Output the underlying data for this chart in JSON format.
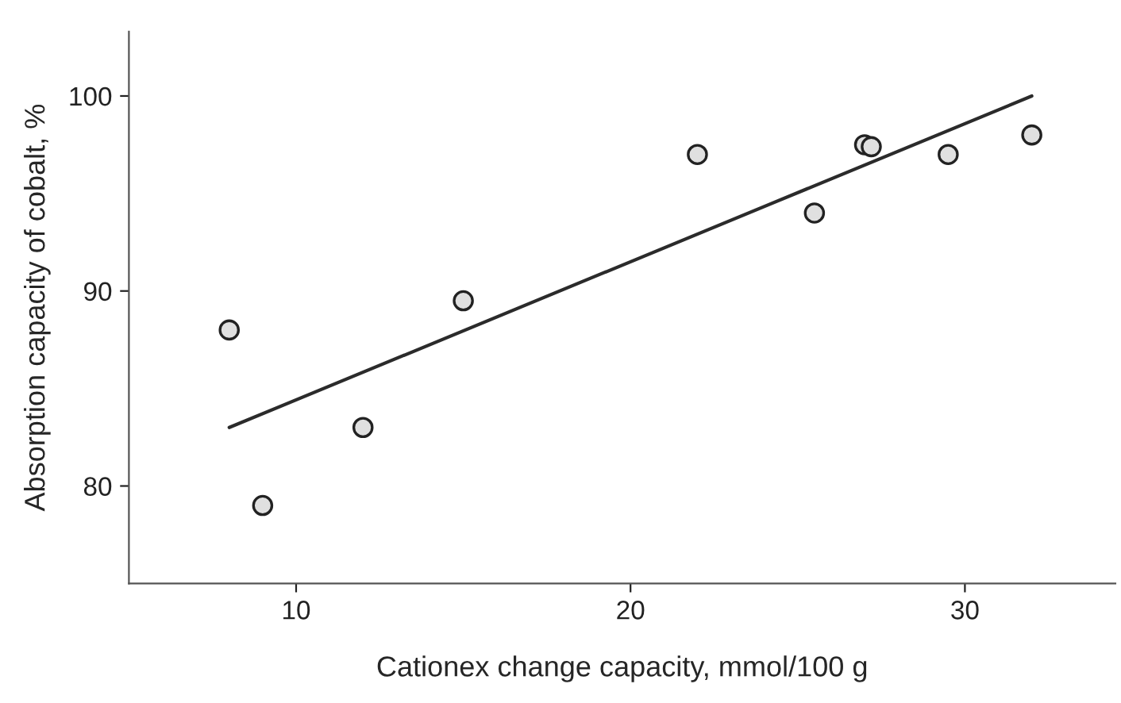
{
  "chart_data": {
    "type": "scatter",
    "xlabel": "Cationex change capacity, mmol/100 g",
    "ylabel": "Absorption capacity of cobalt, %",
    "x": [
      8,
      9,
      12,
      15,
      22,
      25.5,
      27,
      27.2,
      29.5,
      32
    ],
    "series": [
      {
        "color": "#e0e0e0",
        "values": [
          88,
          79,
          83,
          89.5,
          97,
          94,
          97.5,
          97.4,
          97,
          98
        ],
        "marker": "circle"
      },
      {
        "type": "line",
        "color": "#2b2b2b",
        "x": [
          8,
          32
        ],
        "values": [
          83,
          100
        ],
        "marker": "none",
        "line_style": "solid"
      }
    ],
    "xlim": [
      5,
      34.5
    ],
    "ylim": [
      75,
      103.3
    ],
    "xticks": [
      10,
      20,
      30
    ],
    "yticks": [
      80,
      90,
      100
    ],
    "grid": false,
    "legend": false
  }
}
